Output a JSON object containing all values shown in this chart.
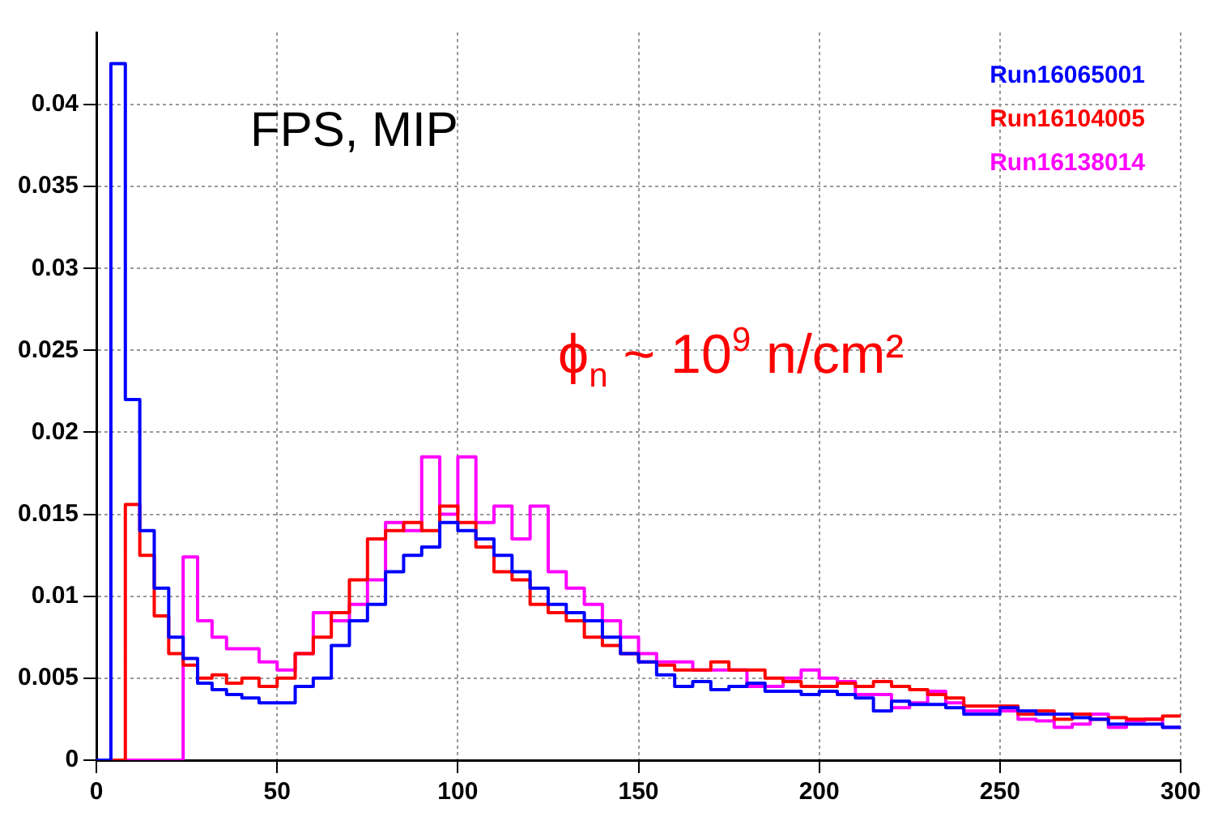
{
  "chart_data": {
    "type": "histogram",
    "annotations": [
      "FPS, MIP",
      "ϕ$_{n}$ ~ 10$^{9}$ n/cm²"
    ],
    "bins": [
      0,
      4,
      8,
      12,
      16,
      20,
      24,
      28,
      32,
      36,
      40,
      45,
      50,
      55,
      60,
      65,
      70,
      75,
      80,
      85,
      90,
      95,
      100,
      105,
      110,
      115,
      120,
      125,
      130,
      135,
      140,
      145,
      150,
      155,
      160,
      165,
      170,
      175,
      180,
      185,
      190,
      195,
      200,
      205,
      210,
      215,
      220,
      225,
      230,
      235,
      240,
      245,
      250,
      255,
      260,
      265,
      270,
      275,
      280,
      285,
      290,
      295,
      300
    ],
    "series": [
      {
        "name": "Run16065001",
        "color": "#0000ff",
        "values": [
          0,
          0.0425,
          0.022,
          0.014,
          0.0105,
          0.0075,
          0.0062,
          0.0047,
          0.0043,
          0.004,
          0.0038,
          0.0035,
          0.0035,
          0.0045,
          0.005,
          0.007,
          0.0085,
          0.0095,
          0.0115,
          0.0125,
          0.013,
          0.0145,
          0.014,
          0.0135,
          0.0125,
          0.0115,
          0.0105,
          0.0095,
          0.009,
          0.0085,
          0.0075,
          0.0065,
          0.006,
          0.0052,
          0.0045,
          0.0048,
          0.0043,
          0.0045,
          0.0047,
          0.0042,
          0.0042,
          0.004,
          0.0042,
          0.004,
          0.0038,
          0.003,
          0.0036,
          0.0034,
          0.0034,
          0.0032,
          0.0028,
          0.0028,
          0.0032,
          0.003,
          0.0028,
          0.0028,
          0.0026,
          0.0025,
          0.0022,
          0.0022,
          0.0022,
          0.002
        ]
      },
      {
        "name": "Run16104005",
        "color": "#ff0000",
        "values": [
          0,
          0,
          0.0156,
          0.0125,
          0.0088,
          0.0065,
          0.0058,
          0.005,
          0.0052,
          0.0047,
          0.005,
          0.0045,
          0.005,
          0.0065,
          0.0075,
          0.009,
          0.011,
          0.0135,
          0.014,
          0.0145,
          0.014,
          0.0155,
          0.0145,
          0.013,
          0.0115,
          0.011,
          0.0095,
          0.009,
          0.0085,
          0.0075,
          0.007,
          0.0065,
          0.006,
          0.0058,
          0.0055,
          0.0055,
          0.006,
          0.0055,
          0.0055,
          0.005,
          0.0048,
          0.0045,
          0.0045,
          0.0047,
          0.0045,
          0.0048,
          0.0045,
          0.0043,
          0.004,
          0.0038,
          0.0033,
          0.0033,
          0.0033,
          0.0028,
          0.003,
          0.0025,
          0.0028,
          0.0025,
          0.0026,
          0.0025,
          0.0025,
          0.0027
        ]
      },
      {
        "name": "Run16138014",
        "color": "#ff00ff",
        "values": [
          0,
          0,
          0,
          0,
          0,
          0,
          0.0124,
          0.0085,
          0.0075,
          0.0068,
          0.0068,
          0.006,
          0.0055,
          0.0065,
          0.009,
          0.0085,
          0.0095,
          0.011,
          0.0145,
          0.014,
          0.0185,
          0.015,
          0.0185,
          0.0145,
          0.0155,
          0.0135,
          0.0155,
          0.0115,
          0.0105,
          0.0095,
          0.0085,
          0.0075,
          0.0065,
          0.006,
          0.006,
          0.0055,
          0.0055,
          0.0055,
          0.0045,
          0.0045,
          0.005,
          0.0055,
          0.005,
          0.0048,
          0.004,
          0.004,
          0.0032,
          0.0035,
          0.0042,
          0.0035,
          0.003,
          0.003,
          0.003,
          0.0025,
          0.0024,
          0.002,
          0.0022,
          0.0028,
          0.002,
          0.0024,
          0.0025,
          0.002
        ]
      }
    ],
    "xlim": [
      0,
      300
    ],
    "xticks": [
      0,
      50,
      100,
      150,
      200,
      250,
      300
    ],
    "ylim": [
      0,
      0.0444
    ],
    "yticks": [
      0,
      0.005,
      0.01,
      0.015,
      0.02,
      0.025,
      0.03,
      0.035,
      0.04
    ],
    "grid": true,
    "legend": "top right"
  }
}
